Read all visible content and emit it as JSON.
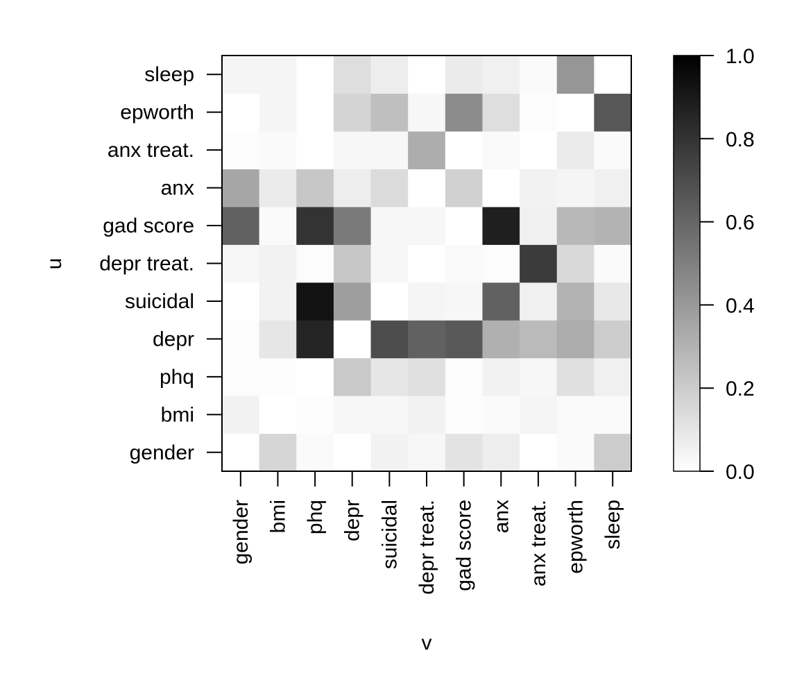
{
  "chart_data": {
    "type": "heatmap",
    "xlabel": "v",
    "ylabel": "u",
    "x_categories": [
      "gender",
      "bmi",
      "phq",
      "depr",
      "suicidal",
      "depr treat.",
      "gad score",
      "anx",
      "anx treat.",
      "epworth",
      "sleep"
    ],
    "y_categories": [
      "gender",
      "bmi",
      "phq",
      "depr",
      "suicidal",
      "depr treat.",
      "gad score",
      "anx",
      "anx treat.",
      "epworth",
      "sleep"
    ],
    "values": [
      [
        0.0,
        0.16,
        0.02,
        0.0,
        0.05,
        0.03,
        0.11,
        0.07,
        0.0,
        0.02,
        0.2
      ],
      [
        0.05,
        0.0,
        0.01,
        0.03,
        0.03,
        0.05,
        0.01,
        0.02,
        0.04,
        0.02,
        0.02
      ],
      [
        0.01,
        0.01,
        0.0,
        0.21,
        0.1,
        0.12,
        0.01,
        0.05,
        0.03,
        0.12,
        0.06
      ],
      [
        0.01,
        0.1,
        0.86,
        0.0,
        0.7,
        0.62,
        0.65,
        0.31,
        0.27,
        0.32,
        0.2
      ],
      [
        0.0,
        0.05,
        0.93,
        0.38,
        0.0,
        0.04,
        0.03,
        0.62,
        0.06,
        0.3,
        0.09
      ],
      [
        0.03,
        0.05,
        0.01,
        0.22,
        0.03,
        0.0,
        0.02,
        0.01,
        0.77,
        0.15,
        0.02
      ],
      [
        0.62,
        0.02,
        0.8,
        0.52,
        0.03,
        0.03,
        0.0,
        0.88,
        0.06,
        0.28,
        0.3
      ],
      [
        0.35,
        0.08,
        0.22,
        0.07,
        0.14,
        0.0,
        0.18,
        0.0,
        0.05,
        0.04,
        0.06
      ],
      [
        0.01,
        0.02,
        0.0,
        0.03,
        0.03,
        0.32,
        0.0,
        0.02,
        0.0,
        0.08,
        0.02
      ],
      [
        0.0,
        0.04,
        0.0,
        0.17,
        0.25,
        0.03,
        0.45,
        0.13,
        0.01,
        0.0,
        0.66
      ],
      [
        0.04,
        0.04,
        0.0,
        0.13,
        0.07,
        0.0,
        0.08,
        0.06,
        0.02,
        0.41,
        0.0
      ]
    ],
    "colorbar": {
      "range": [
        0.0,
        1.0
      ],
      "ticks": [
        "0.0",
        "0.2",
        "0.4",
        "0.6",
        "0.8",
        "1.0"
      ],
      "low_color": "#ffffff",
      "high_color": "#000000"
    }
  }
}
